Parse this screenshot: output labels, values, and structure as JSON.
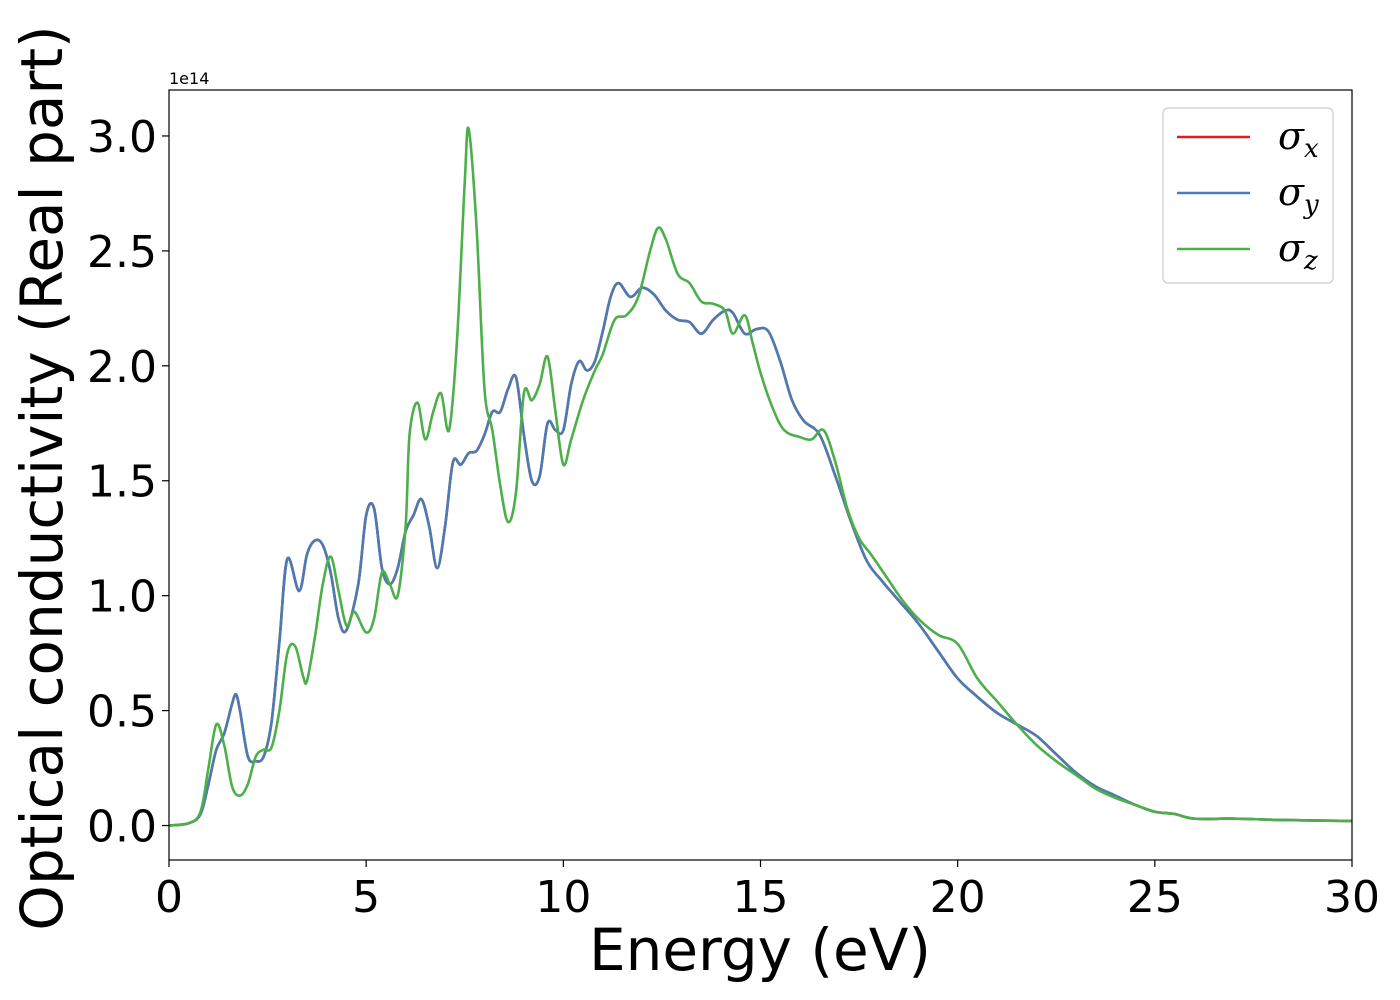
{
  "chart_data": {
    "type": "line",
    "title": "",
    "xlabel": "Energy (eV)",
    "ylabel": "Optical conductivity (Real part)",
    "y_offset_label": "1e14",
    "xlim": [
      0,
      30
    ],
    "ylim": [
      -0.15,
      3.2
    ],
    "xticks": [
      0,
      5,
      10,
      15,
      20,
      25,
      30
    ],
    "xtick_labels": [
      "0",
      "5",
      "10",
      "15",
      "20",
      "25",
      "30"
    ],
    "yticks": [
      0.0,
      0.5,
      1.0,
      1.5,
      2.0,
      2.5,
      3.0
    ],
    "ytick_labels": [
      "0.0",
      "0.5",
      "1.0",
      "1.5",
      "2.0",
      "2.5",
      "3.0"
    ],
    "grid": false,
    "legend_position": "top-right",
    "colors": {
      "sigma_x": "#e41a1c",
      "sigma_y": "#4a7cb4",
      "sigma_z": "#4daf4a"
    },
    "series": [
      {
        "name": "σx",
        "legend_symbol": "σ",
        "legend_subscript": "x",
        "color": "#e41a1c",
        "x": [
          0,
          0.5,
          0.8,
          1.0,
          1.2,
          1.4,
          1.6,
          1.7,
          1.8,
          2.0,
          2.2,
          2.4,
          2.6,
          2.8,
          3.0,
          3.3,
          3.5,
          3.7,
          3.9,
          4.1,
          4.3,
          4.5,
          4.8,
          5.0,
          5.2,
          5.4,
          5.6,
          5.8,
          6.0,
          6.2,
          6.4,
          6.6,
          6.8,
          7.0,
          7.2,
          7.4,
          7.6,
          7.8,
          8.0,
          8.2,
          8.4,
          8.6,
          8.8,
          9.0,
          9.2,
          9.4,
          9.6,
          9.8,
          10.0,
          10.2,
          10.4,
          10.6,
          10.8,
          11.0,
          11.2,
          11.4,
          11.7,
          12.0,
          12.3,
          12.6,
          12.9,
          13.2,
          13.5,
          13.8,
          14.1,
          14.3,
          14.6,
          14.9,
          15.2,
          15.5,
          15.8,
          16.1,
          16.5,
          16.9,
          17.3,
          17.7,
          18.1,
          18.5,
          19.0,
          19.5,
          20.0,
          20.5,
          21.0,
          21.5,
          22.0,
          22.5,
          23.0,
          23.5,
          24.0,
          24.5,
          25.0,
          25.5,
          26.0,
          27.0,
          28.0,
          29.0,
          30.0
        ],
        "y": [
          0.0,
          0.01,
          0.05,
          0.18,
          0.33,
          0.4,
          0.53,
          0.57,
          0.5,
          0.3,
          0.28,
          0.3,
          0.45,
          0.8,
          1.16,
          1.02,
          1.18,
          1.24,
          1.22,
          1.1,
          0.9,
          0.85,
          1.05,
          1.35,
          1.38,
          1.12,
          1.05,
          1.12,
          1.28,
          1.35,
          1.42,
          1.3,
          1.12,
          1.3,
          1.58,
          1.57,
          1.62,
          1.63,
          1.7,
          1.8,
          1.8,
          1.9,
          1.95,
          1.7,
          1.5,
          1.52,
          1.75,
          1.72,
          1.72,
          1.92,
          2.02,
          1.98,
          2.02,
          2.15,
          2.3,
          2.36,
          2.3,
          2.34,
          2.31,
          2.24,
          2.2,
          2.19,
          2.14,
          2.2,
          2.24,
          2.23,
          2.14,
          2.16,
          2.15,
          2.02,
          1.85,
          1.76,
          1.7,
          1.52,
          1.32,
          1.15,
          1.06,
          0.98,
          0.88,
          0.76,
          0.64,
          0.56,
          0.49,
          0.44,
          0.39,
          0.31,
          0.23,
          0.17,
          0.13,
          0.09,
          0.06,
          0.05,
          0.03,
          0.03,
          0.025,
          0.022,
          0.02
        ]
      },
      {
        "name": "σy",
        "legend_symbol": "σ",
        "legend_subscript": "y",
        "color": "#4a7cb4",
        "x": [
          0,
          0.5,
          0.8,
          1.0,
          1.2,
          1.4,
          1.6,
          1.7,
          1.8,
          2.0,
          2.2,
          2.4,
          2.6,
          2.8,
          3.0,
          3.3,
          3.5,
          3.7,
          3.9,
          4.1,
          4.3,
          4.5,
          4.8,
          5.0,
          5.2,
          5.4,
          5.6,
          5.8,
          6.0,
          6.2,
          6.4,
          6.6,
          6.8,
          7.0,
          7.2,
          7.4,
          7.6,
          7.8,
          8.0,
          8.2,
          8.4,
          8.6,
          8.8,
          9.0,
          9.2,
          9.4,
          9.6,
          9.8,
          10.0,
          10.2,
          10.4,
          10.6,
          10.8,
          11.0,
          11.2,
          11.4,
          11.7,
          12.0,
          12.3,
          12.6,
          12.9,
          13.2,
          13.5,
          13.8,
          14.1,
          14.3,
          14.6,
          14.9,
          15.2,
          15.5,
          15.8,
          16.1,
          16.5,
          16.9,
          17.3,
          17.7,
          18.1,
          18.5,
          19.0,
          19.5,
          20.0,
          20.5,
          21.0,
          21.5,
          22.0,
          22.5,
          23.0,
          23.5,
          24.0,
          24.5,
          25.0,
          25.5,
          26.0,
          27.0,
          28.0,
          29.0,
          30.0
        ],
        "y": [
          0.0,
          0.01,
          0.05,
          0.18,
          0.33,
          0.4,
          0.53,
          0.57,
          0.5,
          0.3,
          0.28,
          0.3,
          0.45,
          0.8,
          1.16,
          1.02,
          1.18,
          1.24,
          1.22,
          1.1,
          0.9,
          0.85,
          1.05,
          1.35,
          1.38,
          1.12,
          1.05,
          1.12,
          1.28,
          1.35,
          1.42,
          1.3,
          1.12,
          1.3,
          1.58,
          1.57,
          1.62,
          1.63,
          1.7,
          1.8,
          1.8,
          1.9,
          1.95,
          1.7,
          1.5,
          1.52,
          1.75,
          1.72,
          1.72,
          1.92,
          2.02,
          1.98,
          2.02,
          2.15,
          2.3,
          2.36,
          2.3,
          2.34,
          2.31,
          2.24,
          2.2,
          2.19,
          2.14,
          2.2,
          2.24,
          2.23,
          2.14,
          2.16,
          2.15,
          2.02,
          1.85,
          1.76,
          1.7,
          1.52,
          1.32,
          1.15,
          1.06,
          0.98,
          0.88,
          0.76,
          0.64,
          0.56,
          0.49,
          0.44,
          0.39,
          0.31,
          0.23,
          0.17,
          0.13,
          0.09,
          0.06,
          0.05,
          0.03,
          0.03,
          0.025,
          0.022,
          0.02
        ]
      },
      {
        "name": "σz",
        "legend_symbol": "σ",
        "legend_subscript": "z",
        "color": "#4daf4a",
        "x": [
          0,
          0.5,
          0.8,
          1.0,
          1.2,
          1.4,
          1.6,
          1.8,
          2.0,
          2.2,
          2.4,
          2.6,
          2.8,
          3.0,
          3.2,
          3.4,
          3.5,
          3.7,
          3.9,
          4.1,
          4.3,
          4.5,
          4.7,
          5.0,
          5.2,
          5.4,
          5.6,
          5.8,
          6.0,
          6.1,
          6.3,
          6.5,
          6.7,
          6.9,
          7.1,
          7.3,
          7.5,
          7.6,
          7.8,
          8.0,
          8.2,
          8.4,
          8.6,
          8.8,
          9.0,
          9.2,
          9.4,
          9.6,
          9.8,
          10.0,
          10.2,
          10.5,
          10.8,
          11.0,
          11.3,
          11.6,
          11.9,
          12.2,
          12.4,
          12.6,
          12.9,
          13.2,
          13.5,
          13.8,
          14.1,
          14.3,
          14.6,
          14.8,
          15.0,
          15.3,
          15.6,
          16.0,
          16.3,
          16.6,
          16.9,
          17.2,
          17.5,
          17.8,
          18.2,
          18.6,
          19.0,
          19.5,
          20.0,
          20.5,
          21.0,
          21.5,
          22.0,
          22.5,
          23.0,
          23.5,
          24.0,
          24.5,
          25.0,
          25.5,
          26.0,
          27.0,
          28.0,
          29.0,
          30.0
        ],
        "y": [
          0.0,
          0.01,
          0.06,
          0.25,
          0.44,
          0.35,
          0.17,
          0.13,
          0.18,
          0.3,
          0.33,
          0.34,
          0.5,
          0.75,
          0.78,
          0.65,
          0.63,
          0.82,
          1.05,
          1.17,
          1.02,
          0.87,
          0.93,
          0.84,
          0.9,
          1.1,
          1.05,
          1.0,
          1.3,
          1.7,
          1.84,
          1.68,
          1.8,
          1.88,
          1.72,
          2.1,
          2.8,
          3.03,
          2.6,
          1.9,
          1.72,
          1.48,
          1.32,
          1.45,
          1.88,
          1.85,
          1.92,
          2.04,
          1.8,
          1.57,
          1.68,
          1.85,
          1.98,
          2.05,
          2.2,
          2.22,
          2.3,
          2.5,
          2.6,
          2.55,
          2.4,
          2.36,
          2.28,
          2.27,
          2.24,
          2.14,
          2.22,
          2.1,
          1.97,
          1.82,
          1.72,
          1.69,
          1.68,
          1.72,
          1.58,
          1.38,
          1.25,
          1.18,
          1.08,
          0.98,
          0.9,
          0.83,
          0.79,
          0.64,
          0.54,
          0.44,
          0.35,
          0.28,
          0.22,
          0.16,
          0.12,
          0.09,
          0.06,
          0.05,
          0.03,
          0.03,
          0.025,
          0.022,
          0.02
        ]
      }
    ]
  }
}
